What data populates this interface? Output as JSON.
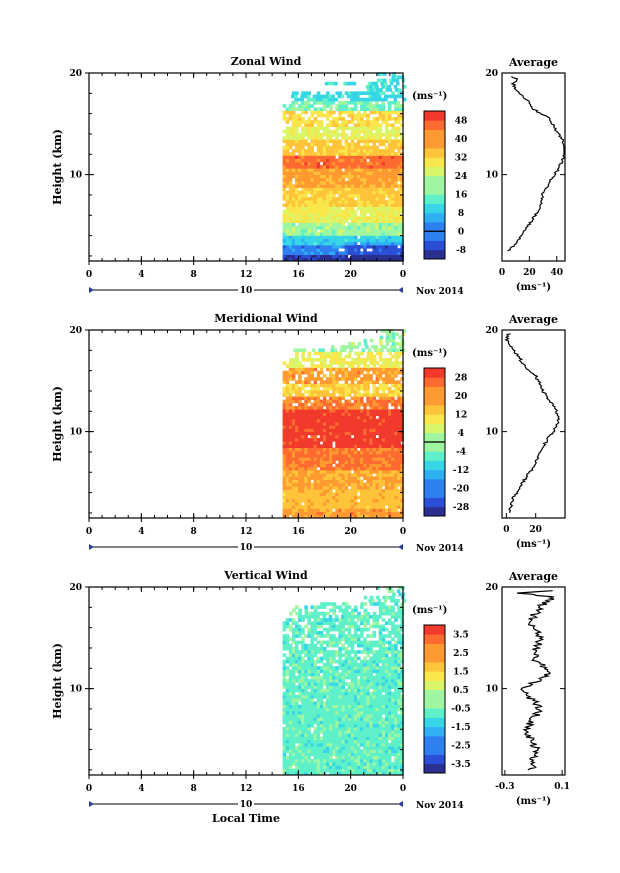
{
  "chart_data": [
    {
      "type": "heatmap",
      "title": "Zonal Wind",
      "ylabel": "Height (km)",
      "yticks": [
        "20",
        "10"
      ],
      "ylim": [
        1.5,
        20
      ],
      "xticks": [
        "0",
        "4",
        "8",
        "12",
        "16",
        "20",
        "0"
      ],
      "xlim": [
        0,
        24
      ],
      "day_label": "10",
      "date_label": "Nov 2014",
      "colorbar": {
        "unit": "(ms⁻¹)",
        "ticks": [
          "48",
          "40",
          "32",
          "24",
          "16",
          "8",
          "0",
          "-8"
        ],
        "range": [
          -12,
          52
        ],
        "zero_line": 0
      },
      "data_start_hour": 14.8,
      "profile_points": [
        [
          5,
          2.5
        ],
        [
          17,
          4.5
        ],
        [
          27,
          6.5
        ],
        [
          31,
          8.5
        ],
        [
          36,
          9.5
        ],
        [
          40,
          10.3
        ],
        [
          44,
          11.3
        ],
        [
          47,
          12.3
        ],
        [
          44,
          13.5
        ],
        [
          39,
          14.5
        ],
        [
          35,
          15.5
        ],
        [
          28,
          16.0
        ],
        [
          23,
          16.5
        ],
        [
          18,
          17.4
        ],
        [
          11,
          18.2
        ],
        [
          8,
          19.0
        ],
        [
          12,
          19.4
        ],
        [
          5,
          19.7
        ]
      ],
      "profile": {
        "title": "Average",
        "yticks": [
          "20",
          "10"
        ],
        "xticks": [
          "0",
          "20",
          "40"
        ],
        "xlim": [
          0,
          46
        ],
        "xlabel": "(ms⁻¹)"
      }
    },
    {
      "type": "heatmap",
      "title": "Meridional Wind",
      "ylabel": "Height (km)",
      "yticks": [
        "20",
        "10"
      ],
      "ylim": [
        1.5,
        20
      ],
      "xticks": [
        "0",
        "4",
        "8",
        "12",
        "16",
        "20",
        "0"
      ],
      "xlim": [
        0,
        24
      ],
      "day_label": "10",
      "date_label": "Nov 2014",
      "colorbar": {
        "unit": "(ms⁻¹)",
        "ticks": [
          "28",
          "20",
          "12",
          "4",
          "-4",
          "-12",
          "-20",
          "-28"
        ],
        "range": [
          -32,
          32
        ],
        "zero_line": 0
      },
      "data_start_hour": 14.8,
      "profile_points": [
        [
          2,
          2.0
        ],
        [
          5,
          3.5
        ],
        [
          9,
          4.5
        ],
        [
          16,
          6.0
        ],
        [
          22,
          7.5
        ],
        [
          27,
          9.0
        ],
        [
          32,
          10.0
        ],
        [
          36,
          11.0
        ],
        [
          34,
          12.0
        ],
        [
          30,
          13.0
        ],
        [
          25,
          14.0
        ],
        [
          20,
          15.5
        ],
        [
          12,
          16.5
        ],
        [
          8,
          17.5
        ],
        [
          2,
          18.5
        ],
        [
          0,
          19.3
        ],
        [
          2,
          19.7
        ]
      ],
      "profile": {
        "title": "Average",
        "yticks": [
          "20",
          "10"
        ],
        "xticks": [
          "0",
          "20"
        ],
        "xlim": [
          -3,
          40
        ],
        "xlabel": "(ms⁻¹)"
      }
    },
    {
      "type": "heatmap",
      "title": "Vertical Wind",
      "ylabel": "Height (km)",
      "yticks": [
        "20",
        "10"
      ],
      "ylim": [
        1.5,
        20
      ],
      "xticks": [
        "0",
        "4",
        "8",
        "12",
        "16",
        "20",
        "0"
      ],
      "xlim": [
        0,
        24
      ],
      "day_label": "10",
      "date_label": "Nov 2014",
      "xlabel": "Local Time",
      "colorbar": {
        "unit": "(ms⁻¹)",
        "ticks": [
          "3.5",
          "2.5",
          "1.5",
          "0.5",
          "-0.5",
          "-1.5",
          "-2.5",
          "-3.5"
        ],
        "range": [
          -4,
          4
        ],
        "zero_line": null
      },
      "data_start_hour": 14.8,
      "profile_points": [
        [
          -0.12,
          2.0
        ],
        [
          -0.08,
          4.0
        ],
        [
          -0.15,
          6.0
        ],
        [
          -0.05,
          8.0
        ],
        [
          -0.18,
          10.0
        ],
        [
          0.02,
          11.5
        ],
        [
          -0.1,
          13.0
        ],
        [
          -0.05,
          15.0
        ],
        [
          -0.13,
          16.5
        ],
        [
          -0.06,
          18.0
        ],
        [
          0.05,
          19.0
        ],
        [
          -0.2,
          19.4
        ],
        [
          0.1,
          19.7
        ]
      ],
      "profile": {
        "title": "Average",
        "yticks": [
          "20",
          "10"
        ],
        "xticks": [
          "-0.3",
          "0.1"
        ],
        "xlim": [
          -0.32,
          0.12
        ],
        "xlabel": "(ms⁻¹)"
      }
    }
  ]
}
